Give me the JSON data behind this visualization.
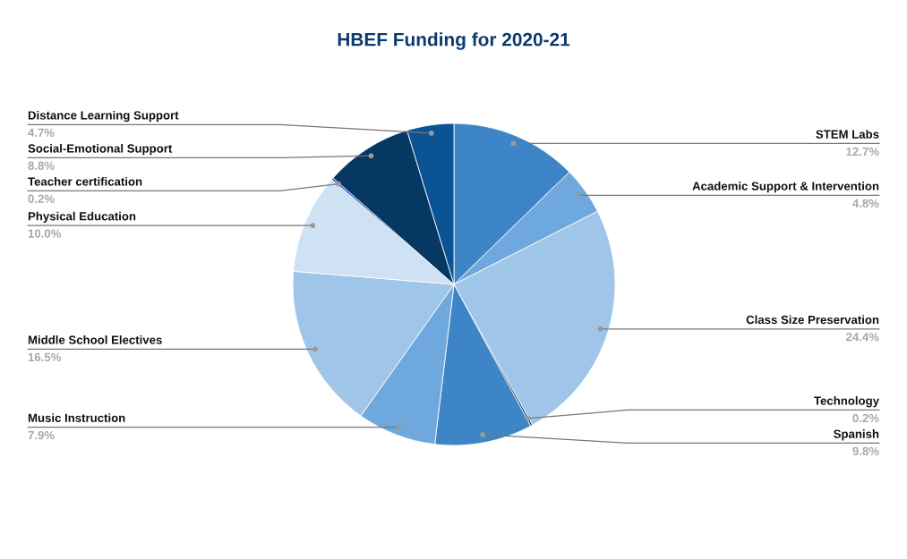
{
  "chart_data": {
    "type": "pie",
    "title": "HBEF Funding for 2020-21",
    "categories": [
      "STEM Labs",
      "Academic Support & Intervention",
      "Class Size Preservation",
      "Technology",
      "Spanish",
      "Music Instruction",
      "Middle School Electives",
      "Physical Education",
      "Teacher certification",
      "Social-Emotional Support",
      "Distance Learning Support"
    ],
    "values": [
      12.7,
      4.8,
      24.4,
      0.2,
      9.8,
      7.9,
      16.5,
      10.0,
      0.2,
      8.8,
      4.7
    ],
    "colors": [
      "#3d85c6",
      "#6fa8dc",
      "#9fc5e8",
      "#073763",
      "#3d85c6",
      "#6fa8dc",
      "#9fc5e8",
      "#cfe2f3",
      "#1155cc",
      "#073763",
      "#0b5394"
    ],
    "value_labels": [
      "12.7%",
      "4.8%",
      "24.4%",
      "0.2%",
      "9.8%",
      "7.9%",
      "16.5%",
      "10.0%",
      "0.2%",
      "8.8%",
      "4.7%"
    ]
  }
}
